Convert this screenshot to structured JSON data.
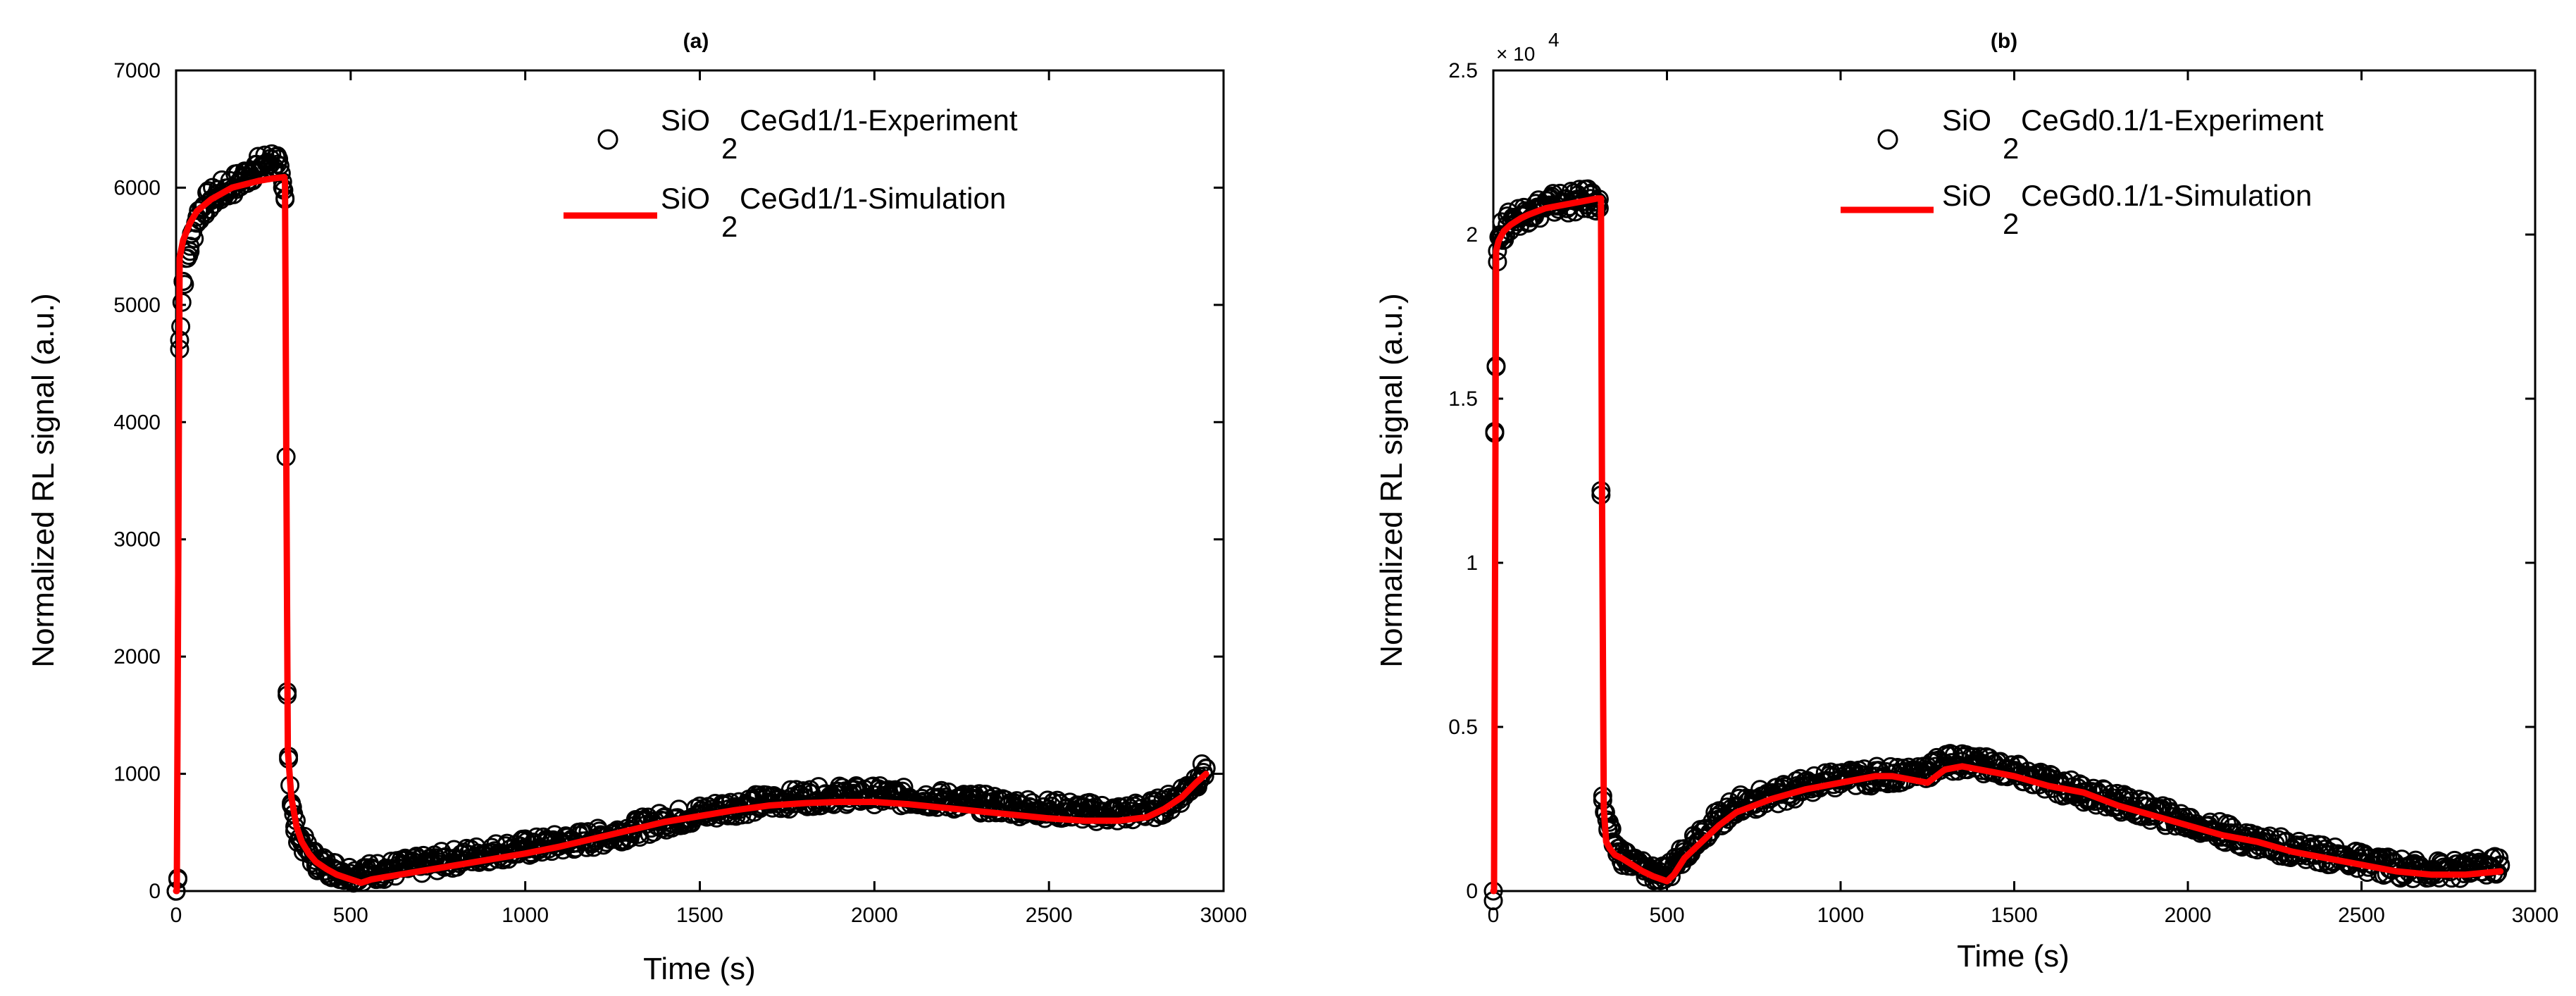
{
  "chart_data": [
    {
      "type": "scatter",
      "title": "(a)",
      "xlabel": "Time (s)",
      "ylabel": "Normalized RL signal (a.u.)",
      "xlim": [
        0,
        3000
      ],
      "ylim": [
        0,
        7000
      ],
      "xticks": [
        0,
        500,
        1000,
        1500,
        2000,
        2500,
        3000
      ],
      "yticks": [
        0,
        1000,
        2000,
        3000,
        4000,
        5000,
        6000,
        7000
      ],
      "ytick_labels": [
        "0",
        "1000",
        "2000",
        "3000",
        "4000",
        "5000",
        "6000",
        "7000"
      ],
      "legend": [
        {
          "prefix": "SiO",
          "sub": "2",
          "rest": "CeGd1/1-Experiment",
          "marker": "circle"
        },
        {
          "prefix": "SiO",
          "sub": "2",
          "rest": "CeGd1/1-Simulation",
          "marker": "line"
        }
      ],
      "colors": {
        "simulation": "#ff0000",
        "experiment": "#000000"
      },
      "series": [
        {
          "name": "SiO2CeGd1/1-Experiment",
          "style": "open-circle",
          "x": [
            0,
            5,
            10,
            20,
            40,
            60,
            80,
            100,
            120,
            150,
            180,
            200,
            220,
            250,
            270,
            290,
            305,
            312,
            318,
            322,
            330,
            340,
            360,
            380,
            400,
            430,
            460,
            500,
            550,
            600,
            700,
            800,
            900,
            1000,
            1100,
            1200,
            1300,
            1400,
            1500,
            1600,
            1700,
            1800,
            1900,
            2000,
            2100,
            2200,
            2300,
            2400,
            2500,
            2600,
            2700,
            2800,
            2850,
            2900,
            2930,
            2950
          ],
          "y": [
            0,
            100,
            4700,
            5200,
            5500,
            5750,
            5850,
            5900,
            5950,
            6000,
            6050,
            6100,
            6150,
            6200,
            6250,
            6200,
            6000,
            5900,
            1700,
            1150,
            750,
            550,
            420,
            330,
            260,
            210,
            180,
            150,
            160,
            180,
            220,
            280,
            330,
            370,
            410,
            450,
            520,
            600,
            660,
            720,
            760,
            800,
            820,
            820,
            800,
            780,
            750,
            720,
            700,
            680,
            660,
            700,
            760,
            880,
            980,
            1050
          ]
        },
        {
          "name": "SiO2CeGd1/1-Simulation",
          "style": "line",
          "x": [
            0,
            2,
            10,
            20,
            40,
            60,
            80,
            100,
            130,
            160,
            200,
            240,
            280,
            310,
            312,
            316,
            320,
            330,
            345,
            360,
            380,
            400,
            430,
            460,
            500,
            530,
            560,
            600,
            700,
            800,
            900,
            1000,
            1100,
            1200,
            1300,
            1400,
            1500,
            1600,
            1700,
            1800,
            1900,
            2000,
            2100,
            2200,
            2300,
            2400,
            2500,
            2600,
            2700,
            2780,
            2830,
            2880,
            2920,
            2950
          ],
          "y": [
            0,
            0,
            5400,
            5550,
            5700,
            5800,
            5850,
            5900,
            5950,
            6000,
            6030,
            6060,
            6080,
            6090,
            6050,
            3500,
            1200,
            800,
            550,
            420,
            320,
            250,
            190,
            140,
            100,
            70,
            100,
            120,
            170,
            220,
            270,
            320,
            380,
            450,
            520,
            590,
            640,
            690,
            730,
            750,
            760,
            760,
            740,
            710,
            680,
            650,
            620,
            600,
            600,
            630,
            700,
            800,
            920,
            1000
          ]
        }
      ]
    },
    {
      "type": "scatter",
      "title": "(b)",
      "xlabel": "Time (s)",
      "ylabel": "Normalized RL signal (a.u.)",
      "xlim": [
        0,
        3000
      ],
      "ylim": [
        0,
        25000
      ],
      "y_multiplier": "× 10",
      "y_multiplier_exp": "4",
      "xticks": [
        0,
        500,
        1000,
        1500,
        2000,
        2500,
        3000
      ],
      "yticks": [
        0,
        5000,
        10000,
        15000,
        20000,
        25000
      ],
      "ytick_labels": [
        "0",
        "0.5",
        "1",
        "1.5",
        "2",
        "2.5"
      ],
      "legend": [
        {
          "prefix": "SiO",
          "sub": "2",
          "rest": "CeGd0.1/1-Experiment",
          "marker": "circle"
        },
        {
          "prefix": "SiO",
          "sub": "2",
          "rest": "CeGd0.1/1-Simulation",
          "marker": "line"
        }
      ],
      "colors": {
        "simulation": "#ff0000",
        "experiment": "#000000"
      },
      "series": [
        {
          "name": "SiO2CeGd0.1/1-Experiment",
          "style": "open-circle",
          "x": [
            0,
            4,
            8,
            12,
            20,
            40,
            60,
            80,
            100,
            130,
            160,
            200,
            240,
            280,
            300,
            305,
            310,
            315,
            320,
            330,
            345,
            360,
            380,
            400,
            430,
            470,
            500,
            520,
            550,
            600,
            650,
            700,
            800,
            900,
            1000,
            1100,
            1200,
            1250,
            1300,
            1350,
            1400,
            1500,
            1600,
            1700,
            1800,
            1900,
            2000,
            2100,
            2200,
            2300,
            2400,
            2500,
            2600,
            2700,
            2800,
            2900
          ],
          "y": [
            0,
            14000,
            16000,
            19500,
            20000,
            20300,
            20500,
            20600,
            20700,
            20800,
            20900,
            21000,
            21000,
            21100,
            21000,
            20800,
            12200,
            2900,
            2400,
            1900,
            1500,
            1200,
            1000,
            850,
            700,
            550,
            450,
            800,
            1200,
            1800,
            2200,
            2600,
            2900,
            3200,
            3400,
            3500,
            3600,
            3700,
            3900,
            3950,
            3900,
            3600,
            3300,
            3000,
            2700,
            2400,
            2100,
            1800,
            1500,
            1300,
            1100,
            900,
            700,
            650,
            650,
            800
          ]
        },
        {
          "name": "SiO2CeGd0.1/1-Simulation",
          "style": "line",
          "x": [
            0,
            2,
            8,
            15,
            30,
            50,
            80,
            100,
            150,
            200,
            250,
            300,
            310,
            313,
            318,
            325,
            335,
            350,
            370,
            400,
            430,
            460,
            500,
            520,
            550,
            600,
            650,
            700,
            800,
            900,
            1000,
            1100,
            1150,
            1200,
            1250,
            1300,
            1350,
            1400,
            1450,
            1500,
            1600,
            1700,
            1800,
            1900,
            2000,
            2100,
            2200,
            2300,
            2400,
            2500,
            2600,
            2700,
            2800,
            2900
          ],
          "y": [
            0,
            0,
            19500,
            19800,
            20100,
            20300,
            20500,
            20600,
            20800,
            20900,
            21000,
            21100,
            21100,
            12000,
            2500,
            1500,
            1300,
            1100,
            1000,
            800,
            600,
            450,
            300,
            500,
            1000,
            1500,
            2000,
            2400,
            2800,
            3100,
            3300,
            3500,
            3500,
            3400,
            3300,
            3700,
            3800,
            3700,
            3600,
            3500,
            3200,
            3000,
            2600,
            2300,
            2000,
            1700,
            1500,
            1200,
            1000,
            800,
            600,
            500,
            500,
            600
          ]
        }
      ]
    }
  ]
}
